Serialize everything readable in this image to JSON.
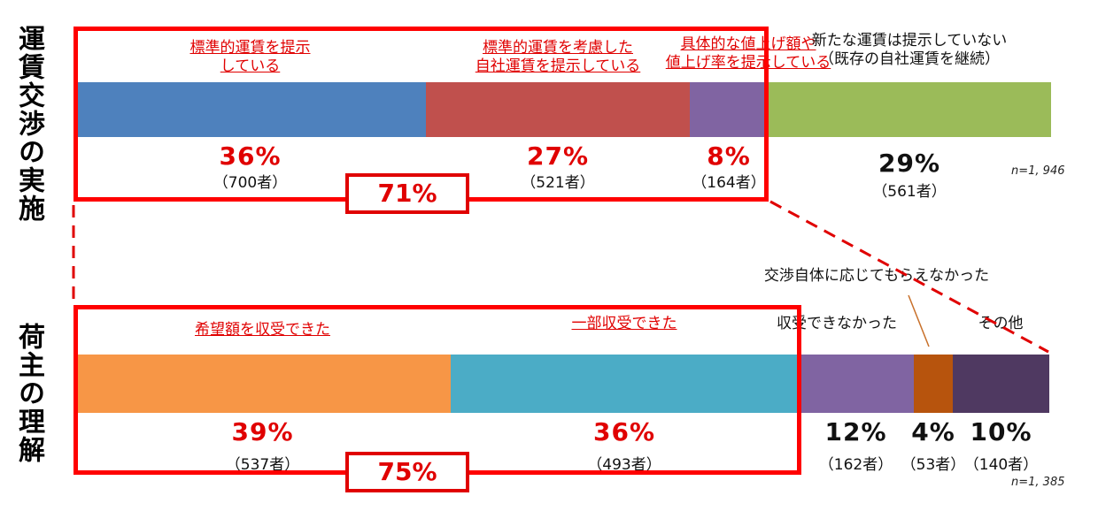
{
  "chart_data": [
    {
      "type": "bar",
      "orientation": "horizontal-stacked-100",
      "row_label": "運賃交渉の実施",
      "n_note": "n=1, 946",
      "segments": [
        {
          "label_lines": [
            "標準的運賃を提示",
            "している"
          ],
          "percent": 36,
          "percent_text": "36%",
          "count_text": "（700者）",
          "color": "#4e81bd",
          "highlight": true
        },
        {
          "label_lines": [
            "標準的運賃を考慮した",
            "自社運賃を提示している"
          ],
          "percent": 27,
          "percent_text": "27%",
          "count_text": "（521者）",
          "color": "#c0504d",
          "highlight": true
        },
        {
          "label_lines": [
            "具体的な値上げ額や",
            "値上げ率を提示している"
          ],
          "percent": 8,
          "percent_text": "8%",
          "count_text": "（164者）",
          "color": "#8064a2",
          "highlight": true
        },
        {
          "label_lines": [
            "新たな運賃は提示していない",
            "（既存の自社運賃を継続）"
          ],
          "percent": 29,
          "percent_text": "29%",
          "count_text": "（561者）",
          "color": "#9bbb59",
          "highlight": false
        }
      ],
      "highlight_total": "71%"
    },
    {
      "type": "bar",
      "orientation": "horizontal-stacked-100",
      "row_label": "荷主の理解",
      "n_note": "n=1, 385",
      "segments": [
        {
          "label_lines": [
            "希望額を収受できた"
          ],
          "percent": 39,
          "percent_text": "39%",
          "count_text": "（537者）",
          "color": "#f79646",
          "highlight": true
        },
        {
          "label_lines": [
            "一部収受できた"
          ],
          "percent": 36,
          "percent_text": "36%",
          "count_text": "（493者）",
          "color": "#4bacc6",
          "highlight": true
        },
        {
          "label_lines": [
            "収受できなかった"
          ],
          "percent": 12,
          "percent_text": "12%",
          "count_text": "（162者）",
          "color": "#8064a2",
          "highlight": false
        },
        {
          "label_lines": [
            "交渉自体に応じてもらえなかった"
          ],
          "percent": 4,
          "percent_text": "4%",
          "count_text": "（53者）",
          "color": "#b7540d",
          "highlight": false
        },
        {
          "label_lines": [
            "その他"
          ],
          "percent": 10,
          "percent_text": "10%",
          "count_text": "（140者）",
          "color": "#4f3961",
          "highlight": false
        }
      ],
      "highlight_total": "75%"
    }
  ]
}
